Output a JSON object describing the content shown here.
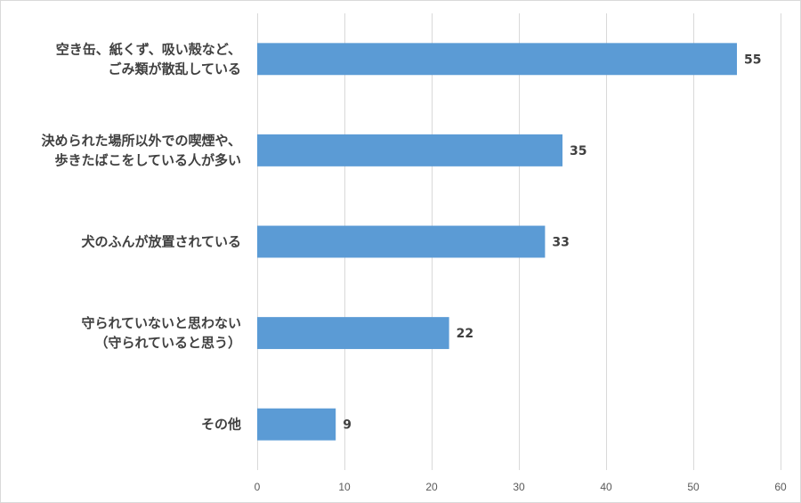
{
  "chart_data": {
    "type": "bar",
    "orientation": "horizontal",
    "categories": [
      [
        "空き缶、紙くず、吸い殻など、",
        "ごみ類が散乱している"
      ],
      [
        "決められた場所以外での喫煙や、",
        "歩きたばこをしている人が多い"
      ],
      [
        "犬のふんが放置されている"
      ],
      [
        "守られていないと思わない",
        "（守られていると思う）"
      ],
      [
        "その他"
      ]
    ],
    "values": [
      55,
      35,
      33,
      22,
      9
    ],
    "data_labels": [
      "55",
      "35",
      "33",
      "22",
      "9"
    ],
    "xlim": [
      0,
      60
    ],
    "xticks": [
      0,
      10,
      20,
      30,
      40,
      50,
      60
    ],
    "xtick_labels": [
      "0",
      "10",
      "20",
      "30",
      "40",
      "50",
      "60"
    ],
    "grid": "vertical",
    "legend": "none",
    "bar_color": "#5b9bd5",
    "title": "",
    "xlabel": "",
    "ylabel": ""
  }
}
